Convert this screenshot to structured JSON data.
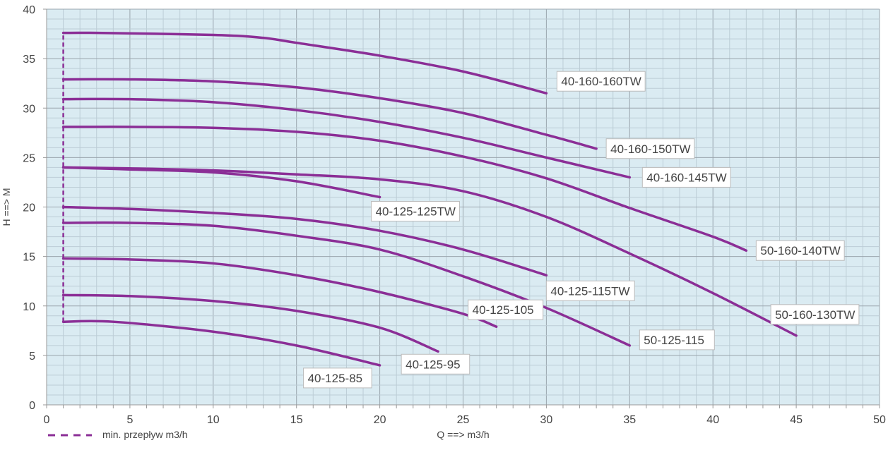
{
  "chart_data": {
    "type": "line",
    "title": "",
    "xlabel": "Q ==> m3/h",
    "ylabel": "H ==> M",
    "xlim": [
      0,
      50
    ],
    "ylim": [
      0,
      40
    ],
    "xticks": [
      0,
      5,
      10,
      15,
      20,
      25,
      30,
      35,
      40,
      45,
      50
    ],
    "yticks": [
      0,
      5,
      10,
      15,
      20,
      25,
      30,
      35,
      40
    ],
    "grid": true,
    "colors": {
      "series": "#8b2e96",
      "background": "#daebf2",
      "major_grid": "#9aa5ad",
      "minor_grid": "#bccdd6"
    },
    "legend": {
      "placement": "bottom-left",
      "entries": [
        {
          "label": "min. przepływ m3/h",
          "style": "dashed"
        }
      ]
    },
    "min_flow": {
      "q": 1,
      "h_range": [
        8.4,
        37.6
      ]
    },
    "series": [
      {
        "name": "40-160-160TW",
        "points": [
          [
            1,
            37.6
          ],
          [
            3,
            37.6
          ],
          [
            10,
            37.4
          ],
          [
            13,
            37.1
          ],
          [
            15,
            36.6
          ],
          [
            20,
            35.3
          ],
          [
            25,
            33.7
          ],
          [
            30,
            31.5
          ]
        ]
      },
      {
        "name": "40-160-150TW",
        "points": [
          [
            1,
            32.9
          ],
          [
            5,
            32.9
          ],
          [
            10,
            32.7
          ],
          [
            15,
            32.1
          ],
          [
            20,
            31.0
          ],
          [
            25,
            29.5
          ],
          [
            30,
            27.3
          ],
          [
            33,
            25.9
          ]
        ]
      },
      {
        "name": "40-160-145TW",
        "points": [
          [
            1,
            30.9
          ],
          [
            5,
            30.9
          ],
          [
            10,
            30.6
          ],
          [
            15,
            29.8
          ],
          [
            20,
            28.6
          ],
          [
            25,
            27.0
          ],
          [
            30,
            25.0
          ],
          [
            35,
            23.0
          ]
        ]
      },
      {
        "name": "50-160-140TW",
        "points": [
          [
            1,
            28.1
          ],
          [
            5,
            28.1
          ],
          [
            10,
            28.0
          ],
          [
            15,
            27.6
          ],
          [
            20,
            26.7
          ],
          [
            25,
            25.1
          ],
          [
            30,
            22.9
          ],
          [
            35,
            19.9
          ],
          [
            40,
            17.0
          ],
          [
            42,
            15.6
          ]
        ]
      },
      {
        "name": "50-160-130TW",
        "points": [
          [
            1,
            24.0
          ],
          [
            5,
            23.9
          ],
          [
            10,
            23.7
          ],
          [
            15,
            23.3
          ],
          [
            20,
            22.8
          ],
          [
            25,
            21.6
          ],
          [
            30,
            19.0
          ],
          [
            35,
            15.3
          ],
          [
            40,
            11.3
          ],
          [
            45,
            7.0
          ]
        ]
      },
      {
        "name": "40-125-125TW",
        "points": [
          [
            1,
            24.0
          ],
          [
            5,
            23.8
          ],
          [
            10,
            23.5
          ],
          [
            15,
            22.6
          ],
          [
            20,
            21.0
          ]
        ]
      },
      {
        "name": "40-125-115TW",
        "points": [
          [
            1,
            20.0
          ],
          [
            5,
            19.8
          ],
          [
            10,
            19.4
          ],
          [
            15,
            18.8
          ],
          [
            20,
            17.6
          ],
          [
            25,
            15.7
          ],
          [
            30,
            13.1
          ]
        ]
      },
      {
        "name": "50-125-115",
        "points": [
          [
            1,
            18.4
          ],
          [
            5,
            18.4
          ],
          [
            10,
            18.1
          ],
          [
            15,
            17.1
          ],
          [
            20,
            15.7
          ],
          [
            25,
            13.0
          ],
          [
            30,
            9.8
          ],
          [
            35,
            6.0
          ]
        ]
      },
      {
        "name": "40-125-105",
        "points": [
          [
            1,
            14.8
          ],
          [
            5,
            14.7
          ],
          [
            10,
            14.3
          ],
          [
            15,
            13.1
          ],
          [
            20,
            11.4
          ],
          [
            25,
            9.2
          ],
          [
            27,
            7.9
          ]
        ]
      },
      {
        "name": "40-125-95",
        "points": [
          [
            1,
            11.1
          ],
          [
            5,
            11.0
          ],
          [
            10,
            10.5
          ],
          [
            15,
            9.5
          ],
          [
            20,
            7.8
          ],
          [
            23.5,
            5.4
          ]
        ]
      },
      {
        "name": "40-125-85",
        "points": [
          [
            1,
            8.4
          ],
          [
            4,
            8.4
          ],
          [
            10,
            7.4
          ],
          [
            15,
            6.0
          ],
          [
            20,
            4.0
          ]
        ]
      }
    ]
  }
}
